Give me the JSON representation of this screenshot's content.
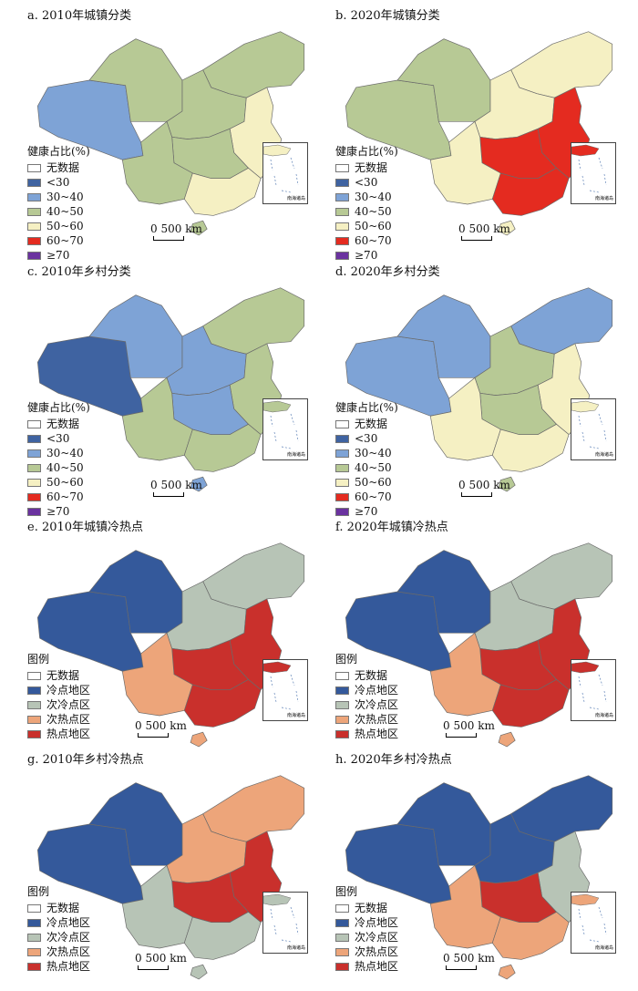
{
  "colors": {
    "nodata": "#ffffff",
    "q_lt30": "#3f63a1",
    "q_30_40": "#7ea3d6",
    "q_40_50": "#b7c995",
    "q_50_60": "#f5f0c3",
    "q_60_70": "#e42b20",
    "q_ge70": "#6a329f",
    "cold": "#34599b",
    "subcold": "#b7c4b6",
    "subhot": "#eda57a",
    "hot": "#c9302c"
  },
  "share_legend": {
    "title": "健康占比(%)",
    "items": [
      {
        "label": "无数据",
        "color": "nodata"
      },
      {
        "label": "<30",
        "color": "q_lt30"
      },
      {
        "label": "30~40",
        "color": "q_30_40"
      },
      {
        "label": "40~50",
        "color": "q_40_50"
      },
      {
        "label": "50~60",
        "color": "q_50_60"
      },
      {
        "label": "60~70",
        "color": "q_60_70"
      },
      {
        "label": "≥70",
        "color": "q_ge70"
      }
    ]
  },
  "hotspot_legend": {
    "title": "图例",
    "items": [
      {
        "label": "无数据",
        "color": "nodata"
      },
      {
        "label": "冷点地区",
        "color": "cold"
      },
      {
        "label": "次冷点区",
        "color": "subcold"
      },
      {
        "label": "次热点区",
        "color": "subhot"
      },
      {
        "label": "热点地区",
        "color": "hot"
      }
    ]
  },
  "scale_label": "500 km",
  "scale_zero": "0",
  "inset_caption": "南海诸岛",
  "panels": [
    {
      "title": "a. 2010年城镇分类",
      "legend": "share",
      "regions": {
        "west": "q_30_40",
        "northwest": "q_40_50",
        "northeast": "q_40_50",
        "north": "q_40_50",
        "east": "q_50_60",
        "central": "q_40_50",
        "southwest": "q_40_50",
        "south": "q_50_60",
        "hainan": "q_40_50"
      }
    },
    {
      "title": "b. 2020年城镇分类",
      "legend": "share",
      "regions": {
        "west": "q_40_50",
        "northwest": "q_40_50",
        "northeast": "q_50_60",
        "north": "q_50_60",
        "east": "q_60_70",
        "central": "q_60_70",
        "southwest": "q_50_60",
        "south": "q_60_70",
        "hainan": "q_50_60"
      }
    },
    {
      "title": "c. 2010年乡村分类",
      "legend": "share",
      "regions": {
        "west": "q_lt30",
        "northwest": "q_30_40",
        "northeast": "q_40_50",
        "north": "q_30_40",
        "east": "q_40_50",
        "central": "q_30_40",
        "southwest": "q_40_50",
        "south": "q_40_50",
        "hainan": "q_30_40"
      }
    },
    {
      "title": "d. 2020年乡村分类",
      "legend": "share",
      "regions": {
        "west": "q_30_40",
        "northwest": "q_30_40",
        "northeast": "q_30_40",
        "north": "q_40_50",
        "east": "q_50_60",
        "central": "q_40_50",
        "southwest": "q_50_60",
        "south": "q_50_60",
        "hainan": "q_40_50"
      }
    },
    {
      "title": "e. 2010年城镇冷热点",
      "legend": "hotspot",
      "regions": {
        "west": "cold",
        "northwest": "cold",
        "northeast": "subcold",
        "north": "subcold",
        "east": "hot",
        "central": "hot",
        "southwest": "subhot",
        "south": "hot",
        "hainan": "subhot"
      }
    },
    {
      "title": "f. 2020年城镇冷热点",
      "legend": "hotspot",
      "regions": {
        "west": "cold",
        "northwest": "cold",
        "northeast": "subcold",
        "north": "subcold",
        "east": "hot",
        "central": "hot",
        "southwest": "subhot",
        "south": "hot",
        "hainan": "subhot"
      }
    },
    {
      "title": "g. 2010年乡村冷热点",
      "legend": "hotspot",
      "regions": {
        "west": "cold",
        "northwest": "cold",
        "northeast": "subhot",
        "north": "subhot",
        "east": "hot",
        "central": "hot",
        "southwest": "subcold",
        "south": "subcold",
        "hainan": "subcold"
      }
    },
    {
      "title": "h. 2020年乡村冷热点",
      "legend": "hotspot",
      "regions": {
        "west": "cold",
        "northwest": "cold",
        "northeast": "cold",
        "north": "cold",
        "east": "subcold",
        "central": "hot",
        "southwest": "subhot",
        "south": "subhot",
        "hainan": "subhot"
      }
    }
  ]
}
